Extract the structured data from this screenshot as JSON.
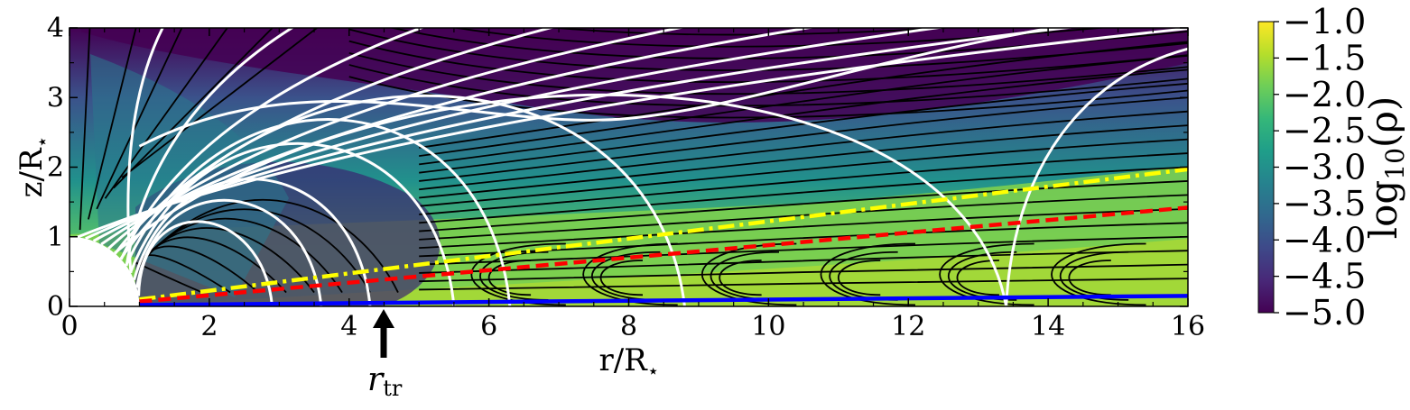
{
  "chart_data": {
    "type": "heatmap",
    "title": "",
    "x": {
      "label_main": "r/R",
      "label_sub": "⋆",
      "ticks": [
        "0",
        "2",
        "4",
        "6",
        "8",
        "10",
        "12",
        "14",
        "16"
      ],
      "lim": [
        0,
        16
      ]
    },
    "y": {
      "label_main": "z/R",
      "label_sub": "⋆",
      "ticks": [
        "0",
        "1",
        "2",
        "3",
        "4"
      ],
      "lim": [
        0,
        4
      ]
    },
    "colorbar": {
      "label": "log10(ρ)",
      "label_main": "log",
      "label_sub": "10",
      "label_tail": "(ρ)",
      "ticks": [
        "−1.0",
        "−1.5",
        "−2.0",
        "−2.5",
        "−3.0",
        "−3.5",
        "−4.0",
        "−4.5",
        "−5.0"
      ],
      "range": [
        -5.0,
        -1.0
      ],
      "colormap": "viridis",
      "stops": [
        "#440154",
        "#482878",
        "#3e4989",
        "#31688e",
        "#26828e",
        "#1f9e89",
        "#35b779",
        "#6ece58",
        "#b5de2b",
        "#fde725"
      ]
    },
    "annotation": {
      "label_main": "r",
      "label_sub": "tr",
      "x": 4.5
    },
    "stellar_radius": 1.0,
    "overlay_lines": [
      {
        "style": "dash-dot",
        "color": "#ffff00",
        "points": [
          [
            1,
            0.1
          ],
          [
            16,
            1.97
          ]
        ]
      },
      {
        "style": "dashed",
        "color": "#ff0000",
        "points": [
          [
            1,
            0.07
          ],
          [
            16,
            1.42
          ]
        ]
      },
      {
        "style": "solid",
        "color": "#0000ff",
        "points": [
          [
            1,
            0.02
          ],
          [
            16,
            0.15
          ]
        ]
      }
    ],
    "field_lines_closed_footpoints_r": [
      2.9,
      3.6,
      4.3,
      5.5,
      6.3,
      8.8,
      13.4
    ],
    "field_line_count_open": 9
  }
}
